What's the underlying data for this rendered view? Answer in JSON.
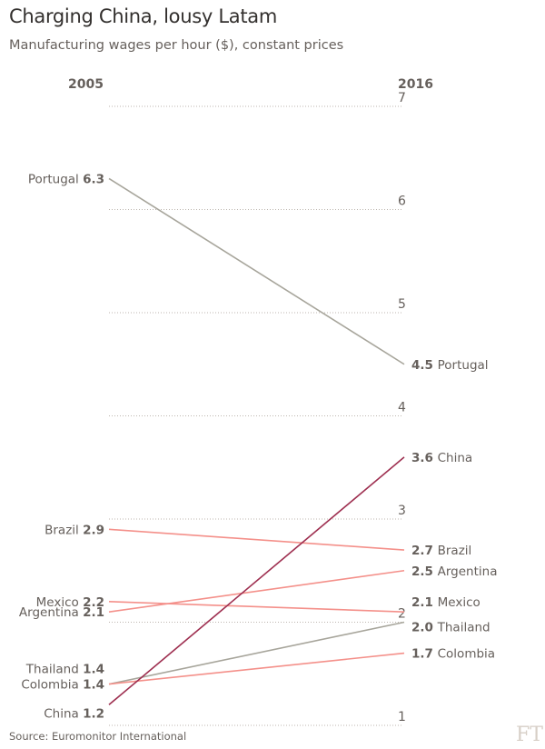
{
  "chart_data": {
    "type": "slope",
    "title": "Charging China, lousy Latam",
    "subtitle": "Manufacturing wages per hour ($), constant prices",
    "categories": [
      "2005",
      "2016"
    ],
    "ylim": [
      1,
      7
    ],
    "yticks": [
      "1",
      "2",
      "3",
      "4",
      "5",
      "6",
      "7"
    ],
    "grid": true,
    "series": [
      {
        "name": "Portugal",
        "values": [
          6.3,
          4.5
        ],
        "left_label": "6.3",
        "right_label": "4.5",
        "color": "#a7a59b"
      },
      {
        "name": "Brazil",
        "values": [
          2.9,
          2.7
        ],
        "left_label": "2.9",
        "right_label": "2.7",
        "color": "#f4908a"
      },
      {
        "name": "Mexico",
        "values": [
          2.2,
          2.1
        ],
        "left_label": "2.2",
        "right_label": "2.1",
        "color": "#f4908a"
      },
      {
        "name": "Argentina",
        "values": [
          2.1,
          2.5
        ],
        "left_label": "2.1",
        "right_label": "2.5",
        "color": "#f4908a"
      },
      {
        "name": "Thailand",
        "values": [
          1.4,
          2.0
        ],
        "left_label": "1.4",
        "right_label": "2.0",
        "color": "#a7a59b"
      },
      {
        "name": "Colombia",
        "values": [
          1.4,
          1.7
        ],
        "left_label": "1.4",
        "right_label": "1.7",
        "color": "#f4908a"
      },
      {
        "name": "China",
        "values": [
          1.2,
          3.6
        ],
        "left_label": "1.2",
        "right_label": "3.6",
        "color": "#9e2f50"
      }
    ],
    "source": "Source: Euromonitor International"
  },
  "logo": "FT"
}
